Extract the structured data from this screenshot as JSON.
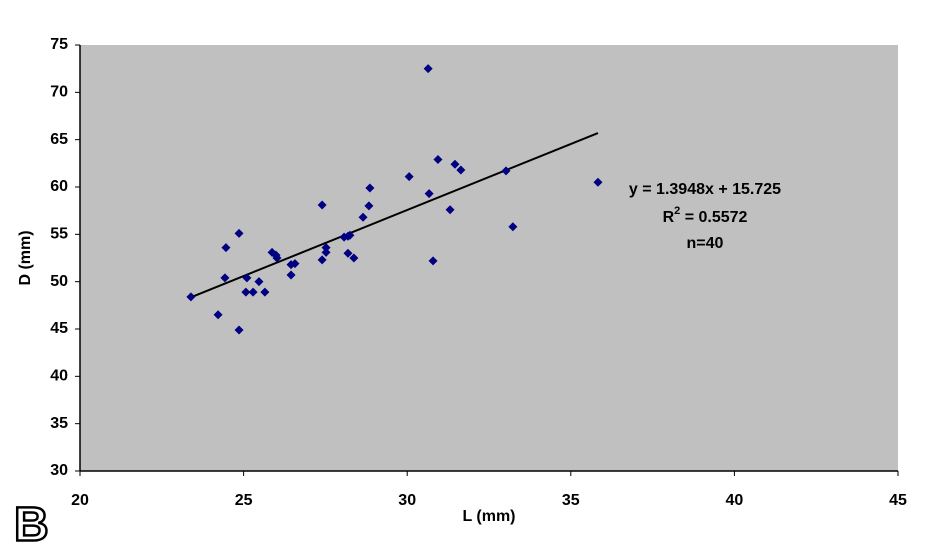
{
  "chart_data": {
    "type": "scatter",
    "x_label": "L (mm)",
    "y_label": "D (mm)",
    "xlim": [
      20,
      45
    ],
    "xticks": [
      20,
      25,
      30,
      35,
      40,
      45
    ],
    "ylim": [
      30,
      75
    ],
    "yticks": [
      30,
      35,
      40,
      45,
      50,
      55,
      60,
      65,
      70,
      75
    ],
    "color": "#000080",
    "plot_background": "#c0c0c0",
    "x": [
      23.39,
      24.22,
      24.46,
      24.43,
      24.86,
      24.86,
      25.1,
      25.07,
      25.29,
      25.47,
      25.65,
      25.87,
      25.99,
      26.02,
      26.45,
      26.45,
      26.57,
      27.4,
      27.4,
      27.52,
      27.52,
      28.07,
      28.19,
      28.25,
      28.19,
      28.37,
      28.65,
      28.83,
      28.86,
      30.06,
      30.64,
      30.67,
      30.79,
      30.94,
      31.31,
      31.46,
      31.64,
      33.02,
      33.23,
      35.83
    ],
    "values": [
      48.4,
      46.5,
      53.6,
      50.4,
      55.1,
      44.9,
      50.4,
      48.9,
      48.9,
      50.0,
      48.9,
      53.1,
      52.8,
      52.5,
      51.8,
      50.7,
      51.9,
      58.1,
      52.3,
      53.6,
      53.1,
      54.7,
      54.8,
      54.9,
      53.0,
      52.5,
      56.8,
      58.0,
      59.9,
      61.1,
      72.5,
      59.3,
      52.2,
      62.9,
      57.6,
      62.4,
      61.8,
      61.7,
      55.8,
      60.5
    ],
    "trendline": {
      "x": [
        23.39,
        35.83
      ],
      "slope": 1.3948,
      "intercept": 15.725,
      "color": "#000000"
    },
    "equation": "y = 1.3948x + 15.725",
    "r_squared": [
      "R",
      "2",
      " = 0.5572"
    ],
    "n_label": "n=40"
  },
  "panel_label": "B"
}
